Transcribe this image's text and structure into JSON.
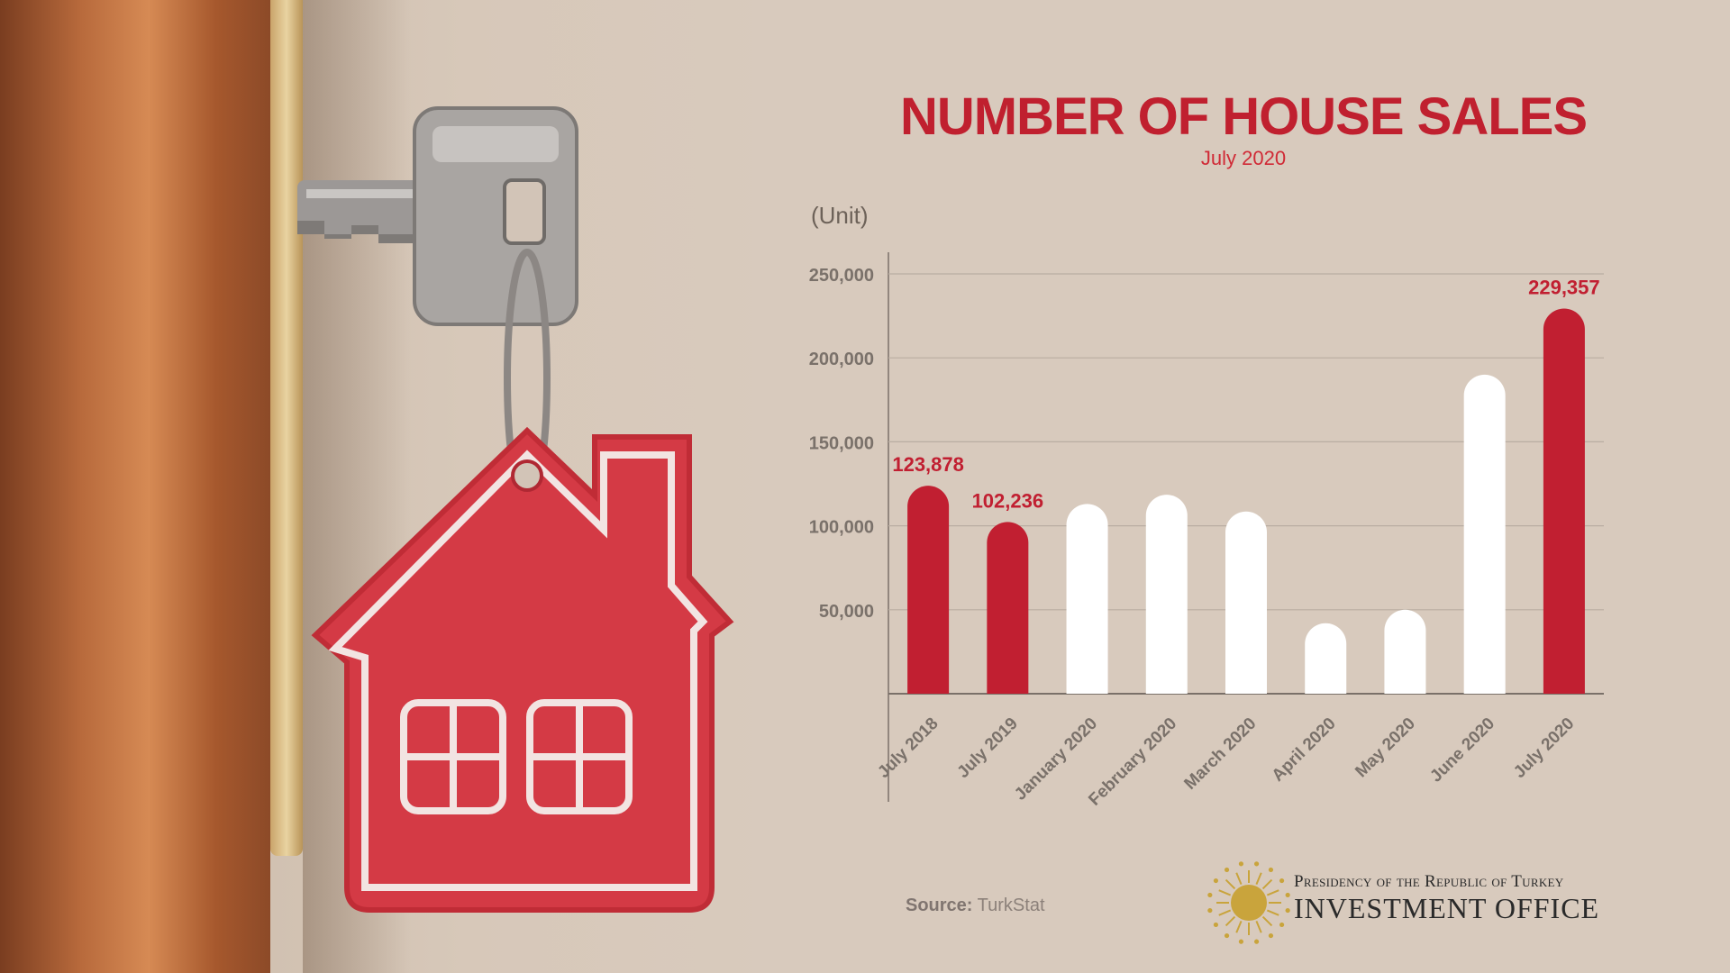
{
  "header": {
    "title": "NUMBER OF HOUSE SALES",
    "subtitle": "July 2020",
    "unit": "(Unit)"
  },
  "footer": {
    "source_label": "Source:",
    "source_value": "TurkStat",
    "org_line1": "Presidency of the Republic of Turkey",
    "org_line2": "INVESTMENT OFFICE"
  },
  "colors": {
    "highlight": "#c11f31",
    "regular": "#ffffff",
    "axis": "#7a7069",
    "grid": "#b9ada2",
    "label": "#7a716a"
  },
  "chart_data": {
    "type": "bar",
    "title": "NUMBER OF HOUSE SALES",
    "subtitle": "July 2020",
    "ylabel": "(Unit)",
    "xlabel": "",
    "categories": [
      "July 2018",
      "July 2019",
      "January 2020",
      "February 2020",
      "March 2020",
      "April 2020",
      "May 2020",
      "June 2020",
      "July 2020"
    ],
    "values": [
      123878,
      102236,
      113000,
      118500,
      108500,
      42000,
      50000,
      190000,
      229357
    ],
    "highlighted": [
      true,
      true,
      false,
      false,
      false,
      false,
      false,
      false,
      true
    ],
    "data_labels": [
      "123,878",
      "102,236",
      "",
      "",
      "",
      "",
      "",
      "",
      "229,357"
    ],
    "yticks": [
      "50,000",
      "100,000",
      "150,000",
      "200,000",
      "250,000"
    ],
    "ytick_values": [
      50000,
      100000,
      150000,
      200000,
      250000
    ],
    "ylim": [
      0,
      250000
    ],
    "grid": true,
    "legend": "none"
  },
  "photo": {
    "subject": "key-with-house-keychain"
  }
}
